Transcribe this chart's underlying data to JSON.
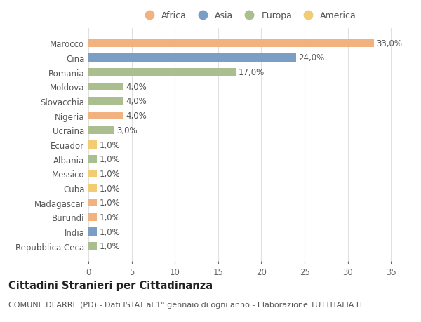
{
  "countries": [
    "Marocco",
    "Cina",
    "Romania",
    "Moldova",
    "Slovacchia",
    "Nigeria",
    "Ucraina",
    "Ecuador",
    "Albania",
    "Messico",
    "Cuba",
    "Madagascar",
    "Burundi",
    "India",
    "Repubblica Ceca"
  ],
  "values": [
    33.0,
    24.0,
    17.0,
    4.0,
    4.0,
    4.0,
    3.0,
    1.0,
    1.0,
    1.0,
    1.0,
    1.0,
    1.0,
    1.0,
    1.0
  ],
  "labels": [
    "33,0%",
    "24,0%",
    "17,0%",
    "4,0%",
    "4,0%",
    "4,0%",
    "3,0%",
    "1,0%",
    "1,0%",
    "1,0%",
    "1,0%",
    "1,0%",
    "1,0%",
    "1,0%",
    "1,0%"
  ],
  "continents": [
    "Africa",
    "Asia",
    "Europa",
    "Europa",
    "Europa",
    "Africa",
    "Europa",
    "America",
    "Europa",
    "America",
    "America",
    "Africa",
    "Africa",
    "Asia",
    "Europa"
  ],
  "colors": {
    "Africa": "#F2B280",
    "Asia": "#7A9EC4",
    "Europa": "#ABBE90",
    "America": "#F2CC72"
  },
  "legend_order": [
    "Africa",
    "Asia",
    "Europa",
    "America"
  ],
  "title": "Cittadini Stranieri per Cittadinanza",
  "subtitle": "COMUNE DI ARRE (PD) - Dati ISTAT al 1° gennaio di ogni anno - Elaborazione TUTTITALIA.IT",
  "xlim": [
    0,
    37
  ],
  "xticks": [
    0,
    5,
    10,
    15,
    20,
    25,
    30,
    35
  ],
  "background_color": "#ffffff",
  "grid_color": "#e0e0e0",
  "bar_height": 0.55,
  "label_fontsize": 8.5,
  "title_fontsize": 10.5,
  "subtitle_fontsize": 8,
  "tick_fontsize": 8.5,
  "legend_fontsize": 9
}
